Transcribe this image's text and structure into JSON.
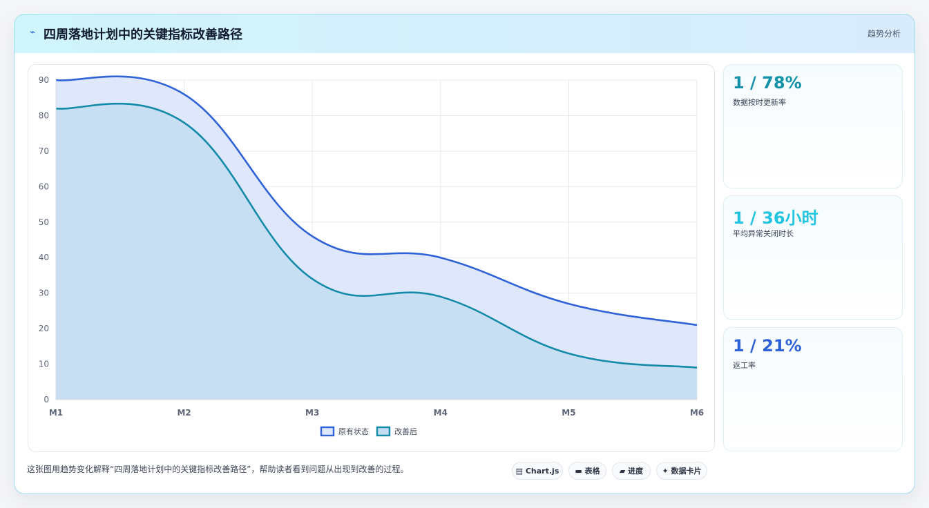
{
  "header": {
    "icon": "trend-icon",
    "title": "四周落地计划中的关键指标改善路径",
    "tag": "趋势分析"
  },
  "chart_data": {
    "type": "area",
    "categories": [
      "M1",
      "M2",
      "M3",
      "M4",
      "M5",
      "M6"
    ],
    "series": [
      {
        "name": "原有状态",
        "values": [
          90,
          86,
          46,
          40,
          27,
          21
        ],
        "color": "#2f62d6",
        "fill": "#dfe8fb"
      },
      {
        "name": "改善后",
        "values": [
          82,
          78,
          34,
          29,
          13,
          9
        ],
        "color": "#138aa8",
        "fill": "#c3dcf1"
      }
    ],
    "ylim": [
      0,
      90
    ],
    "yticks": [
      0,
      10,
      20,
      30,
      40,
      50,
      60,
      70,
      80,
      90
    ],
    "grid": true,
    "legend": "bottom-center"
  },
  "metrics": [
    {
      "value": "1 / 78%",
      "label": "数据按时更新率",
      "color": "#1392a8"
    },
    {
      "value": "1 / 36小时",
      "label": "平均异常关闭时长",
      "color": "#22c4e0"
    },
    {
      "value": "1 / 21%",
      "label": "返工率",
      "color": "#2f62d6"
    }
  ],
  "footer": {
    "description": "这张图用趋势变化解释“四周落地计划中的关键指标改善路径”，帮助读者看到问题从出现到改善的过程。",
    "chips": [
      {
        "icon": "chart-icon",
        "glyph": "▤",
        "label": "Chart.js"
      },
      {
        "icon": "table-icon",
        "glyph": "▬",
        "label": "表格"
      },
      {
        "icon": "progress-icon",
        "glyph": "▰",
        "label": "进度"
      },
      {
        "icon": "sparkle-icon",
        "glyph": "✦",
        "label": "数据卡片"
      }
    ]
  }
}
